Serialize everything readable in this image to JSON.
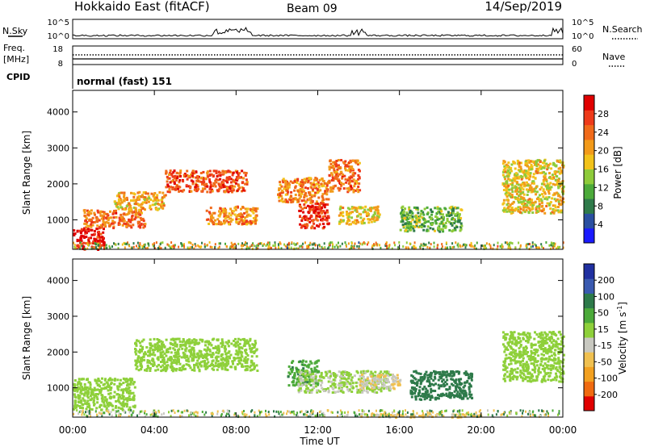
{
  "header": {
    "station": "Hokkaido East (fitACF)",
    "beam": "Beam 09",
    "date": "14/Sep/2019"
  },
  "nsky_panel": {
    "label": "N.Sky",
    "right_label": "N.Search",
    "left_ticks": [
      "10^5",
      "10^0"
    ],
    "right_ticks": [
      "10^5",
      "10^0"
    ]
  },
  "freq_panel": {
    "label_line1": "Freq.",
    "label_line2": "[MHz]",
    "right_label": "Nave",
    "left_ticks": [
      "18",
      "8"
    ],
    "right_ticks": [
      "60",
      "0"
    ]
  },
  "cpid_panel": {
    "label": "CPID",
    "mode": "normal (fast) 151"
  },
  "power_panel": {
    "ylabel": "Slant Range [km]",
    "yticks": [
      "4000",
      "3000",
      "2000",
      "1000"
    ],
    "colorbar_label": "Power [dB]",
    "colorbar_ticks": [
      "28",
      "24",
      "20",
      "16",
      "12",
      "8",
      "4"
    ],
    "colors": [
      "#1a1aff",
      "#2a4fa0",
      "#2f7a4a",
      "#4caa3a",
      "#8ecb3a",
      "#f2c21a",
      "#f29a1a",
      "#f06a1a",
      "#ee3a1a",
      "#e00000"
    ]
  },
  "velocity_panel": {
    "ylabel": "Slant Range [km]",
    "yticks": [
      "4000",
      "3000",
      "2000",
      "1000"
    ],
    "colorbar_label": "Velocity [m s",
    "colorbar_label_sup": "-1",
    "colorbar_label_end": "]",
    "colorbar_ticks": [
      "200",
      "100",
      "50",
      "15",
      "-15",
      "-50",
      "-100",
      "-200"
    ],
    "colors": [
      "#2030a0",
      "#3a5ab0",
      "#2e7a4a",
      "#4caa3a",
      "#8ed03a",
      "#c8c8c0",
      "#f0c050",
      "#f2a020",
      "#f06a10",
      "#e00000"
    ]
  },
  "time_axis": {
    "ticks": [
      "00:00",
      "04:00",
      "08:00",
      "12:00",
      "16:00",
      "20:00",
      "00:00"
    ],
    "label": "Time UT"
  },
  "chart_data": {
    "type": "heatmap",
    "title": "Hokkaido East (fitACF) Beam 09 14/Sep/2019",
    "xlabel": "Time UT",
    "ylabel": "Slant Range [km]",
    "x_range_hours": [
      0,
      24
    ],
    "y_range_km": [
      180,
      4600
    ],
    "power_colorbar_range_db": [
      0,
      32
    ],
    "velocity_colorbar_range_ms": [
      -250,
      250
    ],
    "power_regions": [
      {
        "t": [
          0.0,
          1.5
        ],
        "r": [
          200,
          800
        ],
        "db": 30
      },
      {
        "t": [
          0.5,
          3.5
        ],
        "r": [
          800,
          1300
        ],
        "db": 24
      },
      {
        "t": [
          2.0,
          4.5
        ],
        "r": [
          1300,
          1800
        ],
        "db": 20
      },
      {
        "t": [
          4.5,
          8.5
        ],
        "r": [
          1800,
          2400
        ],
        "db": 26
      },
      {
        "t": [
          6.5,
          9.0
        ],
        "r": [
          900,
          1400
        ],
        "db": 22
      },
      {
        "t": [
          10.0,
          12.5
        ],
        "r": [
          1500,
          2200
        ],
        "db": 22
      },
      {
        "t": [
          11.0,
          12.5
        ],
        "r": [
          800,
          1500
        ],
        "db": 28
      },
      {
        "t": [
          12.5,
          14.0
        ],
        "r": [
          1800,
          2700
        ],
        "db": 24
      },
      {
        "t": [
          13.0,
          15.0
        ],
        "r": [
          900,
          1400
        ],
        "db": 18
      },
      {
        "t": [
          16.0,
          19.0
        ],
        "r": [
          700,
          1400
        ],
        "db": 12
      },
      {
        "t": [
          21.0,
          24.0
        ],
        "r": [
          1200,
          2700
        ],
        "db": 18
      }
    ],
    "velocity_regions": [
      {
        "t": [
          0.0,
          3.0
        ],
        "r": [
          400,
          1300
        ],
        "v": 0
      },
      {
        "t": [
          3.0,
          9.0
        ],
        "r": [
          1500,
          2400
        ],
        "v": 0
      },
      {
        "t": [
          10.5,
          12.0
        ],
        "r": [
          1100,
          1800
        ],
        "v": 40
      },
      {
        "t": [
          11.0,
          15.5
        ],
        "r": [
          900,
          1500
        ],
        "v": -10
      },
      {
        "t": [
          14.0,
          16.0
        ],
        "r": [
          1000,
          1400
        ],
        "v": -50
      },
      {
        "t": [
          16.5,
          19.5
        ],
        "r": [
          700,
          1500
        ],
        "v": 80
      },
      {
        "t": [
          14.0,
          20.0
        ],
        "r": [
          200,
          300
        ],
        "v": -60
      },
      {
        "t": [
          21.0,
          24.0
        ],
        "r": [
          1200,
          2600
        ],
        "v": 0
      }
    ]
  }
}
